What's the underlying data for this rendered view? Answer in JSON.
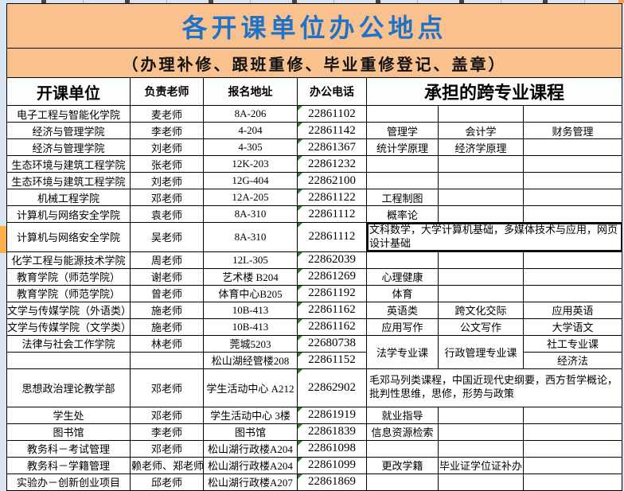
{
  "page": {
    "title": "各开课单位办公地点",
    "subtitle": "（办理补修、跟班重修、毕业重修登记、盖章）"
  },
  "columns": {
    "unit": "开课单位",
    "teacher": "负责老师",
    "address": "报名地址",
    "phone": "办公电话",
    "courses": "承担的跨专业课程"
  },
  "colors": {
    "banner_bg": "#F9C18D",
    "title_text": "#1E72C8",
    "gutter_bg": "#D9E5F1",
    "selected_row_marker": "#FBAE49",
    "text_indicator_green": "#2E7D32",
    "border": "#000000"
  },
  "rows": [
    {
      "unit": "电子工程与智能化学院",
      "teacher": "麦老师",
      "address": "8A-206",
      "phone": "22861102",
      "courses": [
        {
          "t": ""
        },
        {
          "t": ""
        },
        {
          "t": ""
        }
      ]
    },
    {
      "unit": "经济与管理学院",
      "teacher": "李老师",
      "address": "4-204",
      "phone": "22861142",
      "courses": [
        {
          "t": "管理学"
        },
        {
          "t": "会计学"
        },
        {
          "t": "财务管理"
        }
      ]
    },
    {
      "unit": "经济与管理学院",
      "teacher": "刘老师",
      "address": "4-305",
      "phone": "22861367",
      "courses": [
        {
          "t": "统计学原理"
        },
        {
          "t": "经济学原理"
        },
        {
          "t": ""
        }
      ]
    },
    {
      "unit": "生态环境与建筑工程学院",
      "teacher": "张老师",
      "address": "12K-203",
      "phone": "22861232",
      "courses": [
        {
          "t": ""
        },
        {
          "t": ""
        },
        {
          "t": ""
        }
      ]
    },
    {
      "unit": "生态环境与建筑工程学院",
      "teacher": "刘老师",
      "address": "12G-404",
      "phone": "22862100",
      "courses": [
        {
          "t": ""
        },
        {
          "t": ""
        },
        {
          "t": ""
        }
      ]
    },
    {
      "unit": "机械工程学院",
      "teacher": "邓老师",
      "address": "12A-205",
      "phone": "22861122",
      "courses": [
        {
          "t": "工程制图"
        },
        {
          "t": ""
        },
        {
          "t": ""
        }
      ]
    },
    {
      "unit": "计算机与网络安全学院",
      "teacher": "袁老师",
      "address": "8A-310",
      "phone": "22861112",
      "courses": [
        {
          "t": "概率论"
        },
        {
          "t": ""
        },
        {
          "t": ""
        }
      ]
    },
    {
      "unit": "计算机与网络安全学院",
      "teacher": "吴老师",
      "address": "8A-310",
      "phone": "22861112",
      "h": 34,
      "selected_row": true,
      "courses": [
        {
          "t": "文科数学，大学计算机基础，多媒体技术与应用，网页设计基础",
          "colspan": 3,
          "wrap": true,
          "selected": true
        }
      ]
    },
    {
      "unit": "化学工程与能源技术学院",
      "teacher": "周老师",
      "address": "12L-305",
      "phone": "22862039",
      "courses": [
        {
          "t": ""
        },
        {
          "t": ""
        },
        {
          "t": ""
        }
      ]
    },
    {
      "unit": "教育学院（师范学院）",
      "teacher": "谢老师",
      "address": "艺术楼 B204",
      "phone": "22861269",
      "courses": [
        {
          "t": "心理健康"
        },
        {
          "t": ""
        },
        {
          "t": ""
        }
      ]
    },
    {
      "unit": "教育学院（师范学院）",
      "teacher": "曾老师",
      "address": "体育中心B205",
      "phone": "22861192",
      "courses": [
        {
          "t": "体育"
        },
        {
          "t": ""
        },
        {
          "t": ""
        }
      ]
    },
    {
      "unit": "文学与传媒学院（外语类）",
      "teacher": "施老师",
      "address": "10B-413",
      "phone": "22861162",
      "courses": [
        {
          "t": "英语类"
        },
        {
          "t": "跨文化交际"
        },
        {
          "t": "应用英语"
        }
      ]
    },
    {
      "unit": "文学与传媒学院（文学类）",
      "teacher": "施老师",
      "address": "10B-413",
      "phone": "22861162",
      "courses": [
        {
          "t": "应用写作"
        },
        {
          "t": "公文写作"
        },
        {
          "t": "大学语文"
        }
      ]
    },
    {
      "unit": "法律与社会工作学院",
      "teacher": "林老师",
      "address": "莞城5203",
      "phone": "22680738",
      "courses": [
        {
          "t": "法学专业课",
          "rowspan": 2
        },
        {
          "t": "行政管理专业课",
          "rowspan": 2
        },
        {
          "t": "社工专业课"
        }
      ]
    },
    {
      "unit": "",
      "teacher": "",
      "address": "松山湖经管楼208",
      "phone": "22861152",
      "courses": [
        {
          "t": "经济法"
        }
      ]
    },
    {
      "unit": "思想政治理论教学部",
      "teacher": "邓老师",
      "address": "学生活动中心 A212",
      "phone": "22862902",
      "h": 48,
      "courses": [
        {
          "t": "毛邓马列类课程，中国近现代史纲要，西方哲学概论，批判性思维，思修，形势与政策",
          "colspan": 3,
          "wrap": true
        }
      ]
    },
    {
      "unit": "学生处",
      "teacher": "邓老师",
      "address": "学生活动中心 3楼",
      "phone": "22861919",
      "courses": [
        {
          "t": "就业指导"
        },
        {
          "t": ""
        },
        {
          "t": ""
        }
      ]
    },
    {
      "unit": "图书馆",
      "teacher": "李老师",
      "address": "图书馆",
      "phone": "22861839",
      "courses": [
        {
          "t": "信息资源检索"
        },
        {
          "t": ""
        },
        {
          "t": ""
        }
      ]
    },
    {
      "unit": "教务科－考试管理",
      "teacher": "邓老师",
      "address": "松山湖行政楼A204",
      "phone": "22861098",
      "courses": [
        {
          "t": ""
        },
        {
          "t": ""
        },
        {
          "t": ""
        }
      ]
    },
    {
      "unit": "教务科－学籍管理",
      "teacher": "赖老师、郑老师",
      "address": "松山湖行政楼A204",
      "phone": "22861099",
      "courses": [
        {
          "t": "更改学籍"
        },
        {
          "t": "毕业证学位证补办"
        },
        {
          "t": ""
        }
      ]
    },
    {
      "unit": "实验办－创新创业项目",
      "teacher": "邱老师",
      "address": "松山湖行政楼A207",
      "phone": "22861869",
      "courses": [
        {
          "t": ""
        },
        {
          "t": ""
        },
        {
          "t": ""
        }
      ]
    }
  ]
}
